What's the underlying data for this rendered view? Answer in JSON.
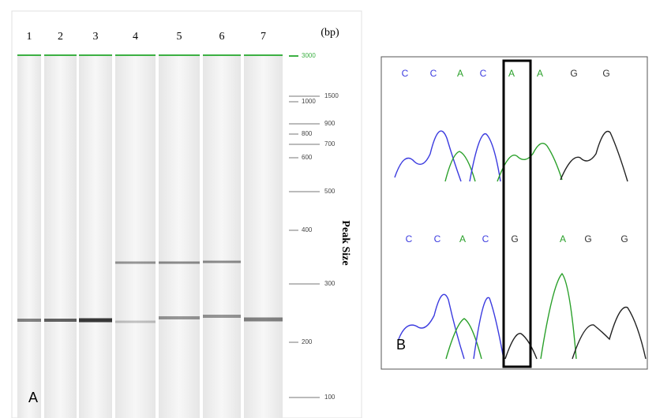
{
  "panel_a": {
    "label": "A",
    "lanes": [
      "1",
      "2",
      "3",
      "4",
      "5",
      "6",
      "7"
    ],
    "unit": "(bp)",
    "sizes": [
      "3000",
      "1500",
      "1000",
      "900",
      "800",
      "700",
      "600",
      "500",
      "400",
      "300",
      "200",
      "100"
    ],
    "axis_label": "Peak Size"
  },
  "panel_b": {
    "label": "B",
    "top_sequence": [
      "C",
      "C",
      "A",
      "C",
      "A",
      "A",
      "G",
      "G"
    ],
    "bottom_sequence": [
      "C",
      "C",
      "A",
      "C",
      "G",
      "A",
      "G",
      "G"
    ]
  }
}
